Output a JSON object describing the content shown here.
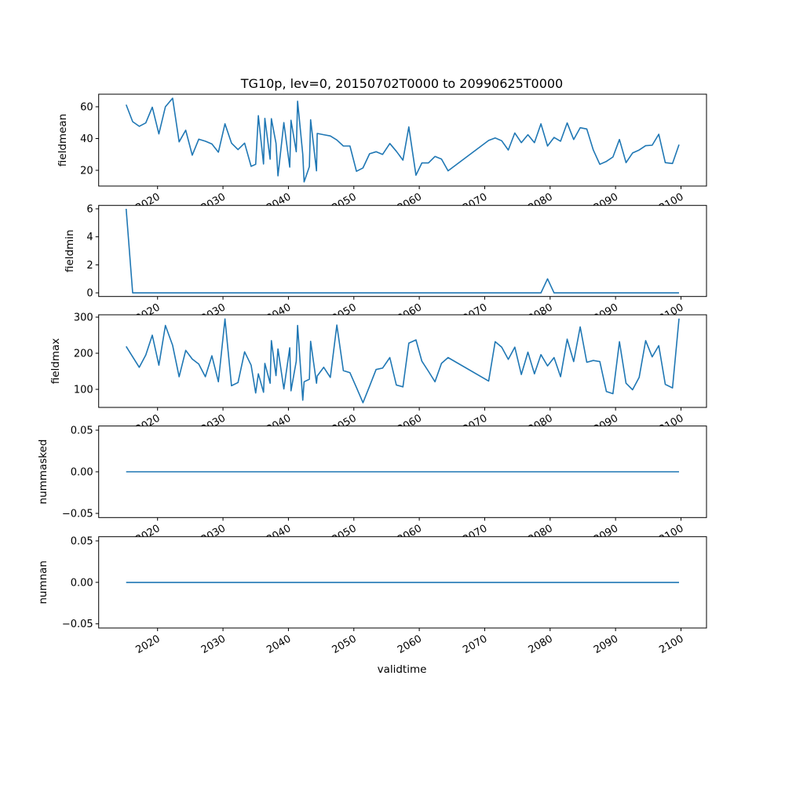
{
  "chart_data": {
    "type": "line",
    "title": "TG10p, lev=0, 20150702T0000 to 20990625T0000",
    "xlabel": "validtime",
    "xlim": [
      2011.0,
      2103.9
    ],
    "xticks": [
      2020,
      2030,
      2040,
      2050,
      2060,
      2070,
      2080,
      2090,
      2100
    ],
    "xtick_labels": [
      "2020",
      "2030",
      "2040",
      "2050",
      "2060",
      "2070",
      "2080",
      "2090",
      "2100"
    ],
    "line_color": "#1f77b4",
    "x": [
      2015.2,
      2016.2,
      2017.2,
      2018.2,
      2019.2,
      2020.2,
      2021.2,
      2022.3,
      2023.3,
      2024.3,
      2025.3,
      2026.3,
      2027.3,
      2028.3,
      2029.3,
      2030.3,
      2031.3,
      2032.3,
      2033.3,
      2034.3,
      2035.0,
      2035.4,
      2036.2,
      2036.4,
      2037.2,
      2037.4,
      2038.1,
      2038.4,
      2039.3,
      2040.2,
      2040.4,
      2041.2,
      2041.4,
      2042.2,
      2042.4,
      2043.2,
      2043.4,
      2044.3,
      2044.4,
      2045.4,
      2046.4,
      2047.4,
      2048.4,
      2049.4,
      2050.4,
      2051.4,
      2052.4,
      2053.4,
      2054.4,
      2055.5,
      2056.5,
      2057.5,
      2058.4,
      2059.5,
      2060.4,
      2061.4,
      2062.4,
      2063.4,
      2064.4,
      2070.6,
      2071.6,
      2072.6,
      2073.6,
      2074.6,
      2075.6,
      2076.6,
      2077.6,
      2078.6,
      2079.6,
      2080.6,
      2081.6,
      2082.6,
      2083.6,
      2084.6,
      2085.6,
      2086.6,
      2087.6,
      2088.6,
      2089.6,
      2090.6,
      2091.6,
      2092.6,
      2093.6,
      2094.6,
      2095.6,
      2096.6,
      2097.6,
      2098.7,
      2099.7
    ],
    "subplots": [
      {
        "ylabel": "fieldmean",
        "ylim": [
          10.1,
          67.9
        ],
        "yticks": [
          20,
          40,
          60
        ],
        "ytick_labels": [
          "20",
          "40",
          "60"
        ],
        "values": [
          61.3,
          50.6,
          47.7,
          49.8,
          59.7,
          42.9,
          60,
          65.4,
          37.9,
          45.2,
          29.5,
          39.6,
          38.3,
          36.6,
          31.4,
          49.3,
          37.1,
          33,
          37.1,
          22.5,
          23.8,
          54.4,
          24,
          52.7,
          27,
          52.5,
          37,
          16.5,
          50,
          22,
          51.5,
          31.7,
          63.5,
          30,
          12.7,
          22.3,
          51.8,
          19.7,
          43.2,
          42.4,
          41.6,
          39.1,
          35.3,
          35.3,
          19.4,
          21.5,
          30.4,
          31.7,
          30,
          36.9,
          32,
          26.4,
          47.3,
          16.9,
          24.6,
          24.6,
          28.7,
          27.1,
          19.7,
          38.8,
          40.4,
          38.6,
          32.8,
          43.5,
          37.4,
          42.4,
          37.4,
          49.3,
          35.3,
          40.7,
          38.3,
          49.8,
          39.4,
          46.8,
          46,
          32.8,
          23.8,
          25.6,
          28.4,
          39.4,
          24.8,
          30.9,
          32.8,
          35.5,
          35.8,
          42.7,
          24.8,
          24.3,
          36.2
        ]
      },
      {
        "ylabel": "fieldmin",
        "ylim": [
          -0.26,
          6.24
        ],
        "yticks": [
          0,
          2,
          4,
          6
        ],
        "ytick_labels": [
          "0",
          "2",
          "4",
          "6"
        ],
        "values": [
          6,
          0,
          0,
          0,
          0,
          0,
          0,
          0,
          0,
          0,
          0,
          0,
          0,
          0,
          0,
          0,
          0,
          0,
          0,
          0,
          0,
          0,
          0,
          0,
          0,
          0,
          0,
          0,
          0,
          0,
          0,
          0,
          0,
          0,
          0,
          0,
          0,
          0,
          0,
          0,
          0,
          0,
          0,
          0,
          0,
          0,
          0,
          0,
          0,
          0,
          0,
          0,
          0,
          0,
          0,
          0,
          0,
          0,
          0,
          0,
          0,
          0,
          0,
          0,
          0,
          0,
          0,
          0,
          1,
          0,
          0,
          0,
          0,
          0,
          0,
          0,
          0,
          0,
          0,
          0,
          0,
          0,
          0,
          0,
          0,
          0,
          0,
          0,
          0
        ]
      },
      {
        "ylabel": "fieldmax",
        "ylim": [
          50,
          306.5
        ],
        "yticks": [
          100,
          200,
          300
        ],
        "ytick_labels": [
          "100",
          "200",
          "300"
        ],
        "values": [
          219,
          190,
          161,
          195,
          250,
          167,
          277,
          222,
          135,
          208,
          184,
          170,
          135,
          193,
          121,
          295,
          110,
          119,
          204,
          167,
          90,
          143,
          92,
          172,
          117,
          235,
          138,
          212,
          101,
          215,
          96,
          178,
          277,
          70,
          121,
          128,
          233,
          117,
          137,
          161,
          133,
          278,
          152,
          146,
          105,
          63,
          109,
          155,
          159,
          188,
          112,
          107,
          228,
          237,
          178,
          150,
          121,
          172,
          188,
          123,
          232,
          217,
          183,
          217,
          141,
          203,
          143,
          196,
          165,
          188,
          135,
          239,
          177,
          273,
          175,
          180,
          177,
          94,
          88,
          232,
          117,
          99,
          133,
          235,
          190,
          221,
          114,
          104,
          296
        ]
      },
      {
        "ylabel": "nummasked",
        "ylim": [
          -0.055,
          0.055
        ],
        "yticks": [
          -0.05,
          0.0,
          0.05
        ],
        "ytick_labels": [
          "−0.05",
          "0.00",
          "0.05"
        ],
        "constant_value": 0
      },
      {
        "ylabel": "numnan",
        "ylim": [
          -0.055,
          0.055
        ],
        "yticks": [
          -0.05,
          0.0,
          0.05
        ],
        "ytick_labels": [
          "−0.05",
          "0.00",
          "0.05"
        ],
        "constant_value": 0
      }
    ]
  }
}
